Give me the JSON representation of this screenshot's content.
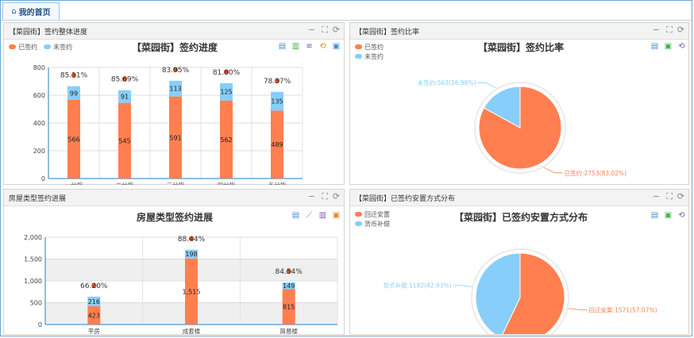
{
  "tab": {
    "label": "我的首页",
    "icon": "home-icon"
  },
  "colors": {
    "signed": "#ff7f50",
    "unsigned": "#87cefa",
    "accent": "#2a63a6"
  },
  "panels": {
    "progress": {
      "header": "【菜园街】签约整体进度",
      "title": "【菜园街】签约进度",
      "legend": [
        "已签约",
        "未签约"
      ],
      "chart_data": {
        "type": "bar",
        "categories": [
          "一分指",
          "二分指",
          "三分指",
          "四分指",
          "五分指"
        ],
        "series": [
          {
            "name": "已签约",
            "values": [
              566,
              545,
              591,
              562,
              489
            ]
          },
          {
            "name": "未签约",
            "values": [
              99,
              91,
              113,
              125,
              135
            ]
          }
        ],
        "percent_labels": [
          "85.11%",
          "85.69%",
          "83.95%",
          "81.80%",
          "78.37%"
        ],
        "ylim": [
          0,
          800
        ],
        "yticks": [
          "0",
          "200",
          "400",
          "600",
          "800"
        ],
        "stacked": true
      }
    },
    "ratio": {
      "header": "【菜园街】签约比率",
      "title": "【菜园街】签约比率",
      "legend": [
        "已签约",
        "未签约"
      ],
      "chart_data": {
        "type": "pie",
        "slices": [
          {
            "name": "已签约",
            "value": 2753,
            "label": "已签约:2753(83.02%)"
          },
          {
            "name": "未签约",
            "value": 563,
            "label": "未签约:563(16.98%)"
          }
        ]
      }
    },
    "housing": {
      "header": "房屋类型签约进展",
      "title": "房屋类型签约进展",
      "chart_data": {
        "type": "bar",
        "categories": [
          "平房",
          "成套楼",
          "简易楼"
        ],
        "series": [
          {
            "name": "已签约",
            "values": [
              423,
              1515,
              815
            ]
          },
          {
            "name": "未签约",
            "values": [
              216,
              198,
              149
            ]
          }
        ],
        "value_labels": [
          [
            "423",
            "1,515",
            "815"
          ],
          [
            "216",
            "198",
            "149"
          ]
        ],
        "percent_labels": [
          "66.20%",
          "88.44%",
          "84.54%"
        ],
        "ylim": [
          0,
          2000
        ],
        "yticks": [
          "0",
          "500",
          "1,000",
          "1,500",
          "2,000"
        ],
        "stacked": true
      }
    },
    "resettle": {
      "header": "【菜园街】已签约安置方式分布",
      "title": "【菜园街】已签约安置方式分布",
      "legend": [
        "回迁安置",
        "货币补偿"
      ],
      "chart_data": {
        "type": "pie",
        "slices": [
          {
            "name": "回迁安置",
            "value": 1571,
            "label": "回迁安置:1571(57.07%)"
          },
          {
            "name": "货币补偿",
            "value": 1182,
            "label": "货币补偿:1182(42.93%)"
          }
        ]
      }
    }
  },
  "window_controls": {
    "minimize": "−",
    "maximize": "⛶",
    "refresh": "⟳"
  }
}
